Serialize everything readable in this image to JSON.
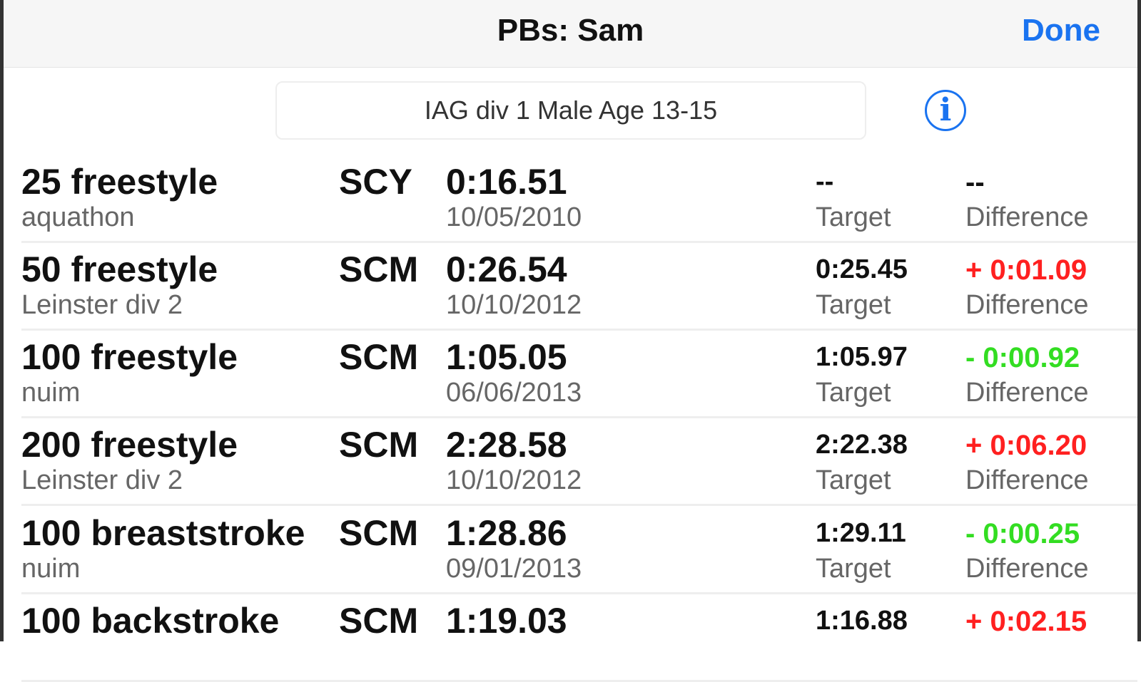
{
  "header": {
    "title": "PBs: Sam",
    "done_label": "Done"
  },
  "filter": {
    "label": "IAG div 1 Male Age 13-15",
    "info_icon": "info-circle-icon"
  },
  "colors": {
    "accent": "#1a73f0",
    "slower": "#ff2020",
    "faster": "#33dd22"
  },
  "labels": {
    "target": "Target",
    "difference": "Difference"
  },
  "rows": [
    {
      "event": "25 freestyle",
      "meet": "aquathon",
      "course": "SCY",
      "time": "0:16.51",
      "date": "10/05/2010",
      "target": "--",
      "difference": "--",
      "status": "none"
    },
    {
      "event": "50 freestyle",
      "meet": "Leinster div 2",
      "course": "SCM",
      "time": "0:26.54",
      "date": "10/10/2012",
      "target": "0:25.45",
      "difference": "+ 0:01.09",
      "status": "slower"
    },
    {
      "event": "100 freestyle",
      "meet": "nuim",
      "course": "SCM",
      "time": "1:05.05",
      "date": "06/06/2013",
      "target": "1:05.97",
      "difference": "- 0:00.92",
      "status": "faster"
    },
    {
      "event": "200 freestyle",
      "meet": "Leinster div 2",
      "course": "SCM",
      "time": "2:28.58",
      "date": "10/10/2012",
      "target": "2:22.38",
      "difference": "+ 0:06.20",
      "status": "slower"
    },
    {
      "event": "100 breaststroke",
      "meet": "nuim",
      "course": "SCM",
      "time": "1:28.86",
      "date": "09/01/2013",
      "target": "1:29.11",
      "difference": "- 0:00.25",
      "status": "faster"
    },
    {
      "event": "100 backstroke",
      "course": "SCM",
      "time": "1:19.03",
      "target": "1:16.88",
      "difference": "+ 0:02.15",
      "status": "slower"
    }
  ]
}
